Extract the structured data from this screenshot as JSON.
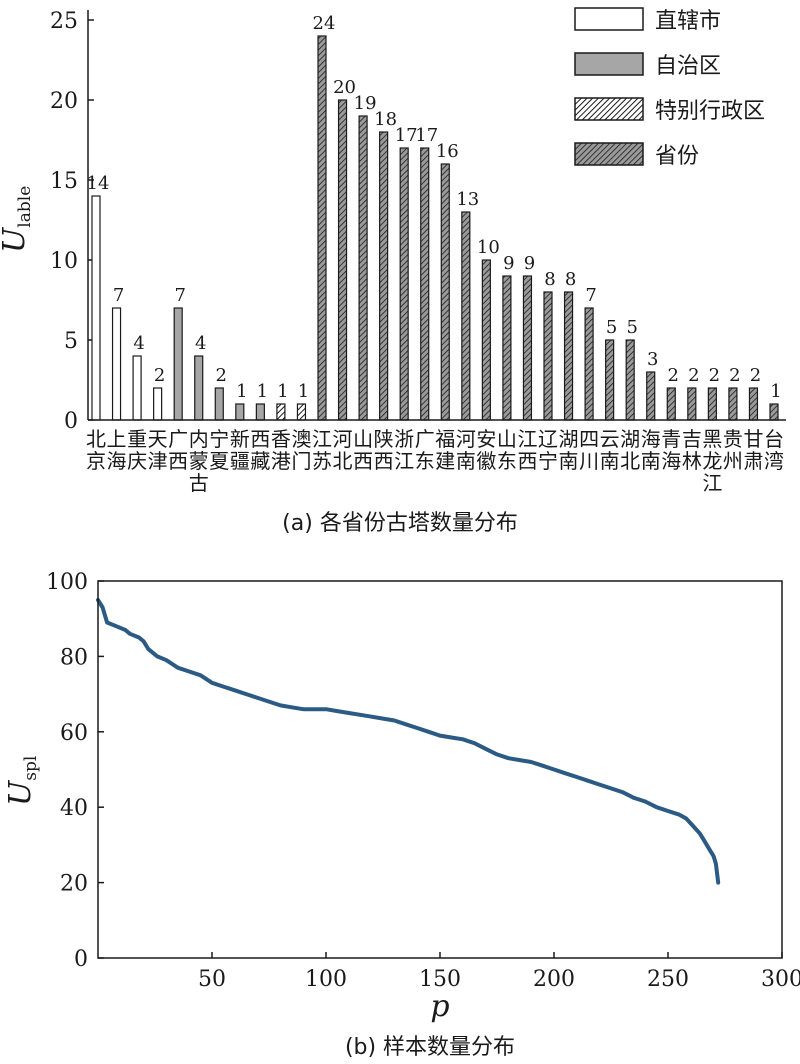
{
  "chart_data": [
    {
      "type": "bar",
      "caption": "(a) 各省份古塔数量分布",
      "ylabel": "U",
      "ylabel_sub": "lable",
      "ylim": [
        0,
        25
      ],
      "yticks": [
        0,
        5,
        10,
        15,
        20,
        25
      ],
      "grid": false,
      "legend_position": "top-right",
      "legend": [
        {
          "key": "municipality",
          "name": "直辖市",
          "fill": "white"
        },
        {
          "key": "autonomous",
          "name": "自治区",
          "fill": "gray"
        },
        {
          "key": "sar",
          "name": "特别行政区",
          "fill": "hatch-light"
        },
        {
          "key": "province",
          "name": "省份",
          "fill": "hatch-dark"
        }
      ],
      "colors": {
        "outline": "#1a1a1a",
        "gray": "#a6a6a6",
        "hatch_dark_bg": "#9a9a9a"
      },
      "categories": [
        {
          "label": "北京",
          "value": 14,
          "type": "municipality"
        },
        {
          "label": "上海",
          "value": 7,
          "type": "municipality"
        },
        {
          "label": "重庆",
          "value": 4,
          "type": "municipality"
        },
        {
          "label": "天津",
          "value": 2,
          "type": "municipality"
        },
        {
          "label": "广西",
          "value": 7,
          "type": "autonomous"
        },
        {
          "label": "内蒙古",
          "value": 4,
          "type": "autonomous"
        },
        {
          "label": "宁夏",
          "value": 2,
          "type": "autonomous"
        },
        {
          "label": "新疆",
          "value": 1,
          "type": "autonomous"
        },
        {
          "label": "西藏",
          "value": 1,
          "type": "autonomous"
        },
        {
          "label": "香港",
          "value": 1,
          "type": "sar"
        },
        {
          "label": "澳门",
          "value": 1,
          "type": "sar"
        },
        {
          "label": "江苏",
          "value": 24,
          "type": "province"
        },
        {
          "label": "河北",
          "value": 20,
          "type": "province"
        },
        {
          "label": "山西",
          "value": 19,
          "type": "province"
        },
        {
          "label": "陕西",
          "value": 18,
          "type": "province"
        },
        {
          "label": "浙江",
          "value": 17,
          "type": "province"
        },
        {
          "label": "广东",
          "value": 17,
          "type": "province"
        },
        {
          "label": "福建",
          "value": 16,
          "type": "province"
        },
        {
          "label": "河南",
          "value": 13,
          "type": "province"
        },
        {
          "label": "安徽",
          "value": 10,
          "type": "province"
        },
        {
          "label": "山东",
          "value": 9,
          "type": "province"
        },
        {
          "label": "江西",
          "value": 9,
          "type": "province"
        },
        {
          "label": "辽宁",
          "value": 8,
          "type": "province"
        },
        {
          "label": "湖南",
          "value": 8,
          "type": "province"
        },
        {
          "label": "四川",
          "value": 7,
          "type": "province"
        },
        {
          "label": "云南",
          "value": 5,
          "type": "province"
        },
        {
          "label": "湖北",
          "value": 5,
          "type": "province"
        },
        {
          "label": "海南",
          "value": 3,
          "type": "province"
        },
        {
          "label": "青海",
          "value": 2,
          "type": "province"
        },
        {
          "label": "吉林",
          "value": 2,
          "type": "province"
        },
        {
          "label": "黑龙江",
          "value": 2,
          "type": "province"
        },
        {
          "label": "贵州",
          "value": 2,
          "type": "province"
        },
        {
          "label": "甘肃",
          "value": 2,
          "type": "province"
        },
        {
          "label": "台湾",
          "value": 1,
          "type": "province"
        }
      ]
    },
    {
      "type": "line",
      "caption": "(b) 样本数量分布",
      "xlabel": "p",
      "ylabel": "U",
      "ylabel_sub": "spl",
      "xlim": [
        0,
        300
      ],
      "ylim": [
        0,
        100
      ],
      "xticks": [
        50,
        100,
        150,
        200,
        250,
        300
      ],
      "yticks": [
        0,
        20,
        40,
        60,
        80,
        100
      ],
      "grid": false,
      "color": "#2b5a84",
      "x": [
        0,
        2,
        4,
        8,
        12,
        14,
        18,
        20,
        22,
        26,
        30,
        35,
        40,
        45,
        50,
        55,
        60,
        65,
        70,
        75,
        80,
        85,
        90,
        95,
        100,
        105,
        110,
        115,
        120,
        125,
        130,
        135,
        140,
        145,
        150,
        155,
        160,
        165,
        170,
        175,
        180,
        185,
        190,
        195,
        200,
        205,
        210,
        215,
        220,
        225,
        230,
        235,
        240,
        245,
        250,
        255,
        258,
        261,
        264,
        266,
        268,
        270,
        271,
        272
      ],
      "y": [
        95,
        93,
        89,
        88,
        87,
        86,
        85,
        84,
        82,
        80,
        79,
        77,
        76,
        75,
        73,
        72,
        71,
        70,
        69,
        68,
        67,
        66.5,
        66,
        66,
        66,
        65.5,
        65,
        64.5,
        64,
        63.5,
        63,
        62,
        61,
        60,
        59,
        58.5,
        58,
        57,
        55.5,
        54,
        53,
        52.5,
        52,
        51,
        50,
        49,
        48,
        47,
        46,
        45,
        44,
        42.5,
        41.5,
        40,
        39,
        38,
        37,
        35,
        33,
        31,
        29,
        27,
        25,
        20
      ]
    }
  ]
}
